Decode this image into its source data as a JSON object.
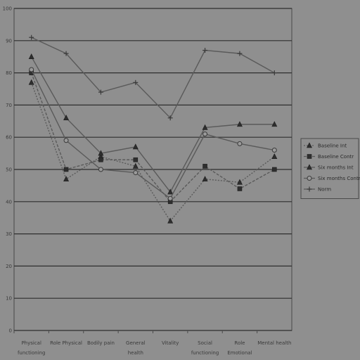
{
  "chart_data": {
    "type": "line",
    "title": "",
    "xlabel": "",
    "ylabel": "",
    "ylim": [
      0,
      100
    ],
    "yticks": [
      0,
      10,
      20,
      30,
      40,
      50,
      60,
      70,
      80,
      90,
      100
    ],
    "grid": true,
    "legend_position": "right",
    "categories": [
      [
        "Physical",
        "functioning"
      ],
      [
        "Role Physical"
      ],
      [
        "Bodily pain"
      ],
      [
        "General",
        "health"
      ],
      [
        "Vitality"
      ],
      [
        "Social",
        "functioning"
      ],
      [
        "Role",
        "Emotional"
      ],
      [
        "Mental health"
      ]
    ],
    "series": [
      {
        "name": "Baseline Int",
        "marker": "triangle",
        "dash": "2,2",
        "values": [
          77,
          47,
          54,
          51,
          34,
          47,
          46,
          54
        ]
      },
      {
        "name": "Baseline Contr",
        "marker": "square",
        "dash": "4,2",
        "values": [
          80,
          50,
          53,
          53,
          40,
          51,
          44,
          50
        ]
      },
      {
        "name": "Six months Int",
        "marker": "triangle",
        "dash": "",
        "values": [
          85,
          66,
          55,
          57,
          43,
          63,
          64,
          64
        ]
      },
      {
        "name": "Six months Contr",
        "marker": "circle",
        "dash": "",
        "values": [
          81,
          59,
          50,
          49,
          41,
          61,
          58,
          56
        ]
      },
      {
        "name": "Norm",
        "marker": "plus",
        "dash": "",
        "values": [
          91,
          86,
          74,
          77,
          66,
          87,
          86,
          80
        ]
      }
    ]
  }
}
